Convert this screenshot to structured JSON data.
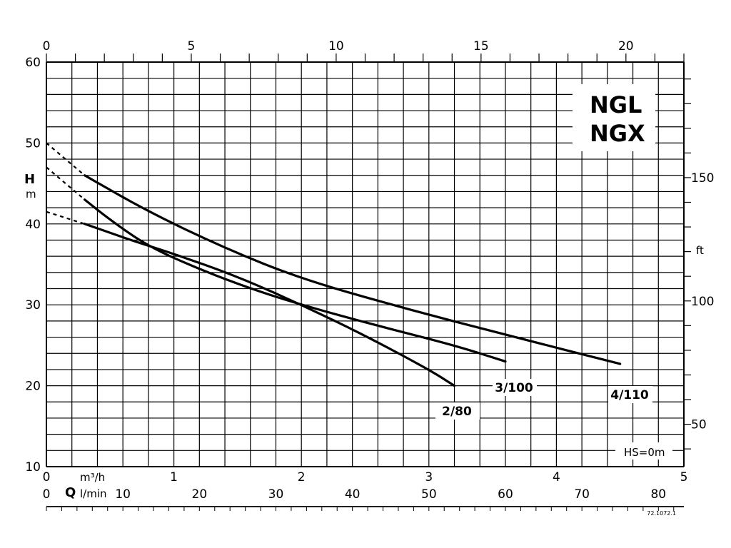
{
  "chart_data": {
    "type": "line",
    "models": [
      "NGL",
      "NGX"
    ],
    "condition": "HS=0m",
    "x_primary": {
      "unit": "m³/h",
      "range": [
        0,
        5
      ],
      "ticks": [
        "0",
        "1",
        "2",
        "3",
        "4",
        "5"
      ]
    },
    "x_secondary_lmin": {
      "label": "Q",
      "unit": "l/min",
      "range": [
        0,
        83.33
      ],
      "ticks": [
        "0",
        "10",
        "20",
        "30",
        "40",
        "50",
        "60",
        "70",
        "80"
      ]
    },
    "x_top": {
      "range": [
        0,
        22
      ],
      "ticks": [
        "0",
        "5",
        "10",
        "15",
        "20"
      ]
    },
    "y_primary": {
      "label": "H",
      "unit": "m",
      "range": [
        10,
        60
      ],
      "ticks": [
        "10",
        "20",
        "30",
        "40",
        "50",
        "60"
      ]
    },
    "y_secondary_ft": {
      "unit": "ft",
      "ticks": [
        "50",
        "100",
        "150"
      ]
    },
    "grid": true,
    "series": [
      {
        "name": "2/80",
        "extrapolated": [
          [
            0,
            41.5
          ],
          [
            0.3,
            40.0
          ]
        ],
        "x": [
          0.3,
          0.5,
          0.7,
          1.0,
          1.5,
          2.0,
          2.5,
          3.0,
          3.2
        ],
        "y": [
          40.0,
          38.9,
          37.8,
          36.3,
          33.5,
          30.0,
          26.2,
          22.0,
          20.0
        ]
      },
      {
        "name": "3/100",
        "extrapolated": [
          [
            0,
            47.0
          ],
          [
            0.3,
            43.0
          ]
        ],
        "x": [
          0.3,
          0.5,
          0.8,
          1.2,
          1.6,
          2.0,
          2.6,
          3.2,
          3.6
        ],
        "y": [
          43.0,
          40.5,
          37.2,
          34.4,
          32.0,
          30.0,
          27.4,
          25.0,
          23.0
        ]
      },
      {
        "name": "4/110",
        "extrapolated": [
          [
            0,
            50.0
          ],
          [
            0.3,
            46.0
          ]
        ],
        "x": [
          0.3,
          0.8,
          1.4,
          2.0,
          2.8,
          3.6,
          4.5
        ],
        "y": [
          46.0,
          41.5,
          37.0,
          33.2,
          29.6,
          26.3,
          22.7
        ]
      }
    ]
  },
  "doc_code": "72.1072.1"
}
